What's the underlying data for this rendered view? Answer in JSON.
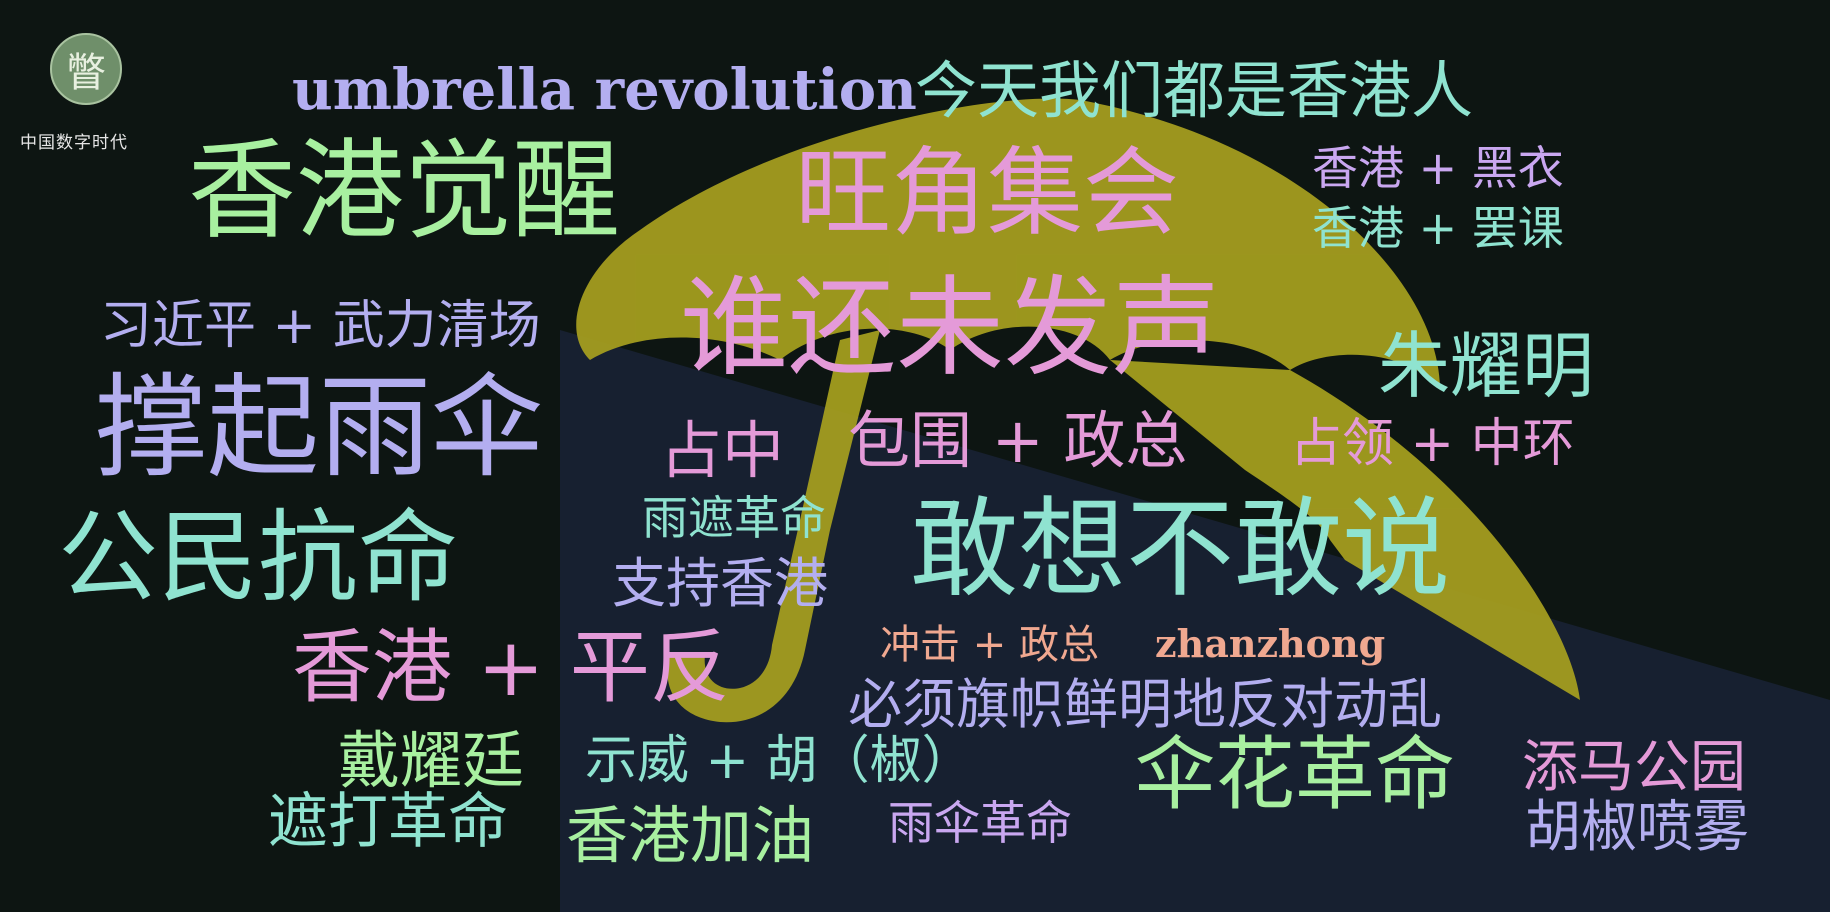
{
  "logo": {
    "glyph": "瞥",
    "caption": "中国数字时代"
  },
  "colors": {
    "background": "#0d1512",
    "umbrella": "#a8a11f"
  },
  "words": [
    {
      "text": "umbrella  revolution",
      "color": "#b3aef0",
      "latin": true
    },
    {
      "text": "今天我们都是香港人",
      "color": "#8fe3d0"
    },
    {
      "text": "香港觉醒",
      "color": "#a8f0a0"
    },
    {
      "text": "旺角集会",
      "color": "#e49ad8"
    },
    {
      "text": "香港 + 黑衣",
      "color": "#c9a7f0"
    },
    {
      "text": "香港 + 罢课",
      "color": "#8fe3d0"
    },
    {
      "text": "习近平 + 武力清场",
      "color": "#b3aef0"
    },
    {
      "text": "谁还未发声",
      "color": "#e49ad8"
    },
    {
      "text": "朱耀明",
      "color": "#8fe3d0"
    },
    {
      "text": "撑起雨伞",
      "color": "#b3aef0"
    },
    {
      "text": "占中",
      "color": "#e49ad8"
    },
    {
      "text": "包围 + 政总",
      "color": "#e49ad8"
    },
    {
      "text": "占领 + 中环",
      "color": "#e49ad8"
    },
    {
      "text": "雨遮革命",
      "color": "#8fe3d0"
    },
    {
      "text": "公民抗命",
      "color": "#8fe3d0"
    },
    {
      "text": "敢想不敢说",
      "color": "#8fe3d0"
    },
    {
      "text": "支持香港",
      "color": "#b3aef0"
    },
    {
      "text": "香港 + 平反",
      "color": "#e49ad8"
    },
    {
      "text": "冲击 + 政总",
      "color": "#f0a890"
    },
    {
      "text": "zhanzhong",
      "color": "#f0a890",
      "latin": true
    },
    {
      "text": "必须旗帜鲜明地反对动乱",
      "color": "#b3aef0"
    },
    {
      "text": "戴耀廷",
      "color": "#a8f0a0"
    },
    {
      "text": "示威 + 胡（椒）",
      "color": "#8fe3d0"
    },
    {
      "text": "伞花革命",
      "color": "#a8f0a0"
    },
    {
      "text": "添马公园",
      "color": "#e49ad8"
    },
    {
      "text": "遮打革命",
      "color": "#8fe3d0"
    },
    {
      "text": "香港加油",
      "color": "#a8f0a0"
    },
    {
      "text": "雨伞革命",
      "color": "#c9a7f0"
    },
    {
      "text": "胡椒喷雾",
      "color": "#b3aef0"
    }
  ]
}
